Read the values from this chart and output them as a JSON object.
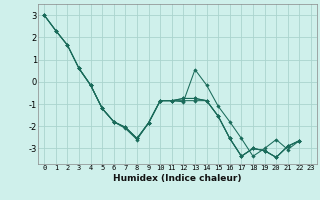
{
  "title": "",
  "xlabel": "Humidex (Indice chaleur)",
  "bg_color": "#cff0eb",
  "grid_color": "#aad4ce",
  "line_color": "#1a6b5a",
  "xlim": [
    -0.5,
    23.5
  ],
  "ylim": [
    -3.7,
    3.5
  ],
  "yticks": [
    -3,
    -2,
    -1,
    0,
    1,
    2,
    3
  ],
  "xticks": [
    0,
    1,
    2,
    3,
    4,
    5,
    6,
    7,
    8,
    9,
    10,
    11,
    12,
    13,
    14,
    15,
    16,
    17,
    18,
    19,
    20,
    21,
    22,
    23
  ],
  "series": [
    {
      "x": [
        0,
        1,
        2,
        3,
        4,
        5,
        6,
        7,
        8,
        9,
        10,
        11,
        12,
        13,
        14,
        15,
        16,
        17,
        18,
        19,
        20,
        21,
        22
      ],
      "y": [
        3.0,
        2.3,
        1.65,
        0.6,
        -0.15,
        -1.2,
        -1.8,
        -2.05,
        -2.55,
        -1.85,
        -0.85,
        -0.85,
        -0.9,
        0.55,
        -0.15,
        -1.1,
        -1.8,
        -2.55,
        -3.35,
        -3.0,
        -2.6,
        -3.05,
        -2.65
      ]
    },
    {
      "x": [
        0,
        1,
        2,
        3,
        4,
        5,
        6,
        7,
        8,
        9,
        10,
        11,
        12,
        13,
        14,
        15,
        16,
        17,
        18,
        19,
        20,
        21,
        22
      ],
      "y": [
        3.0,
        2.3,
        1.65,
        0.6,
        -0.15,
        -1.2,
        -1.8,
        -2.05,
        -2.55,
        -1.85,
        -0.85,
        -0.85,
        -0.75,
        -0.75,
        -0.85,
        -1.55,
        -2.55,
        -3.35,
        -3.0,
        -3.1,
        -3.4,
        -2.9,
        -2.65
      ]
    },
    {
      "x": [
        0,
        1,
        2,
        3,
        4,
        5,
        6,
        7,
        8,
        9,
        10,
        11,
        12,
        13,
        14,
        15,
        16,
        17,
        18,
        19,
        20,
        21,
        22
      ],
      "y": [
        3.0,
        2.3,
        1.65,
        0.6,
        -0.15,
        -1.2,
        -1.8,
        -2.05,
        -2.55,
        -1.85,
        -0.85,
        -0.85,
        -0.75,
        -0.75,
        -0.85,
        -1.55,
        -2.55,
        -3.35,
        -3.0,
        -3.1,
        -3.4,
        -2.9,
        -2.65
      ]
    },
    {
      "x": [
        3,
        4,
        5,
        6,
        7,
        8,
        9,
        10,
        11,
        12,
        13,
        14,
        15,
        16,
        17,
        18,
        19,
        20,
        21,
        22
      ],
      "y": [
        0.6,
        -0.15,
        -1.2,
        -1.8,
        -2.1,
        -2.6,
        -1.85,
        -0.85,
        -0.85,
        -0.85,
        -0.85,
        -0.85,
        -1.55,
        -2.55,
        -3.35,
        -3.0,
        -3.1,
        -3.4,
        -2.9,
        -2.65
      ]
    }
  ]
}
